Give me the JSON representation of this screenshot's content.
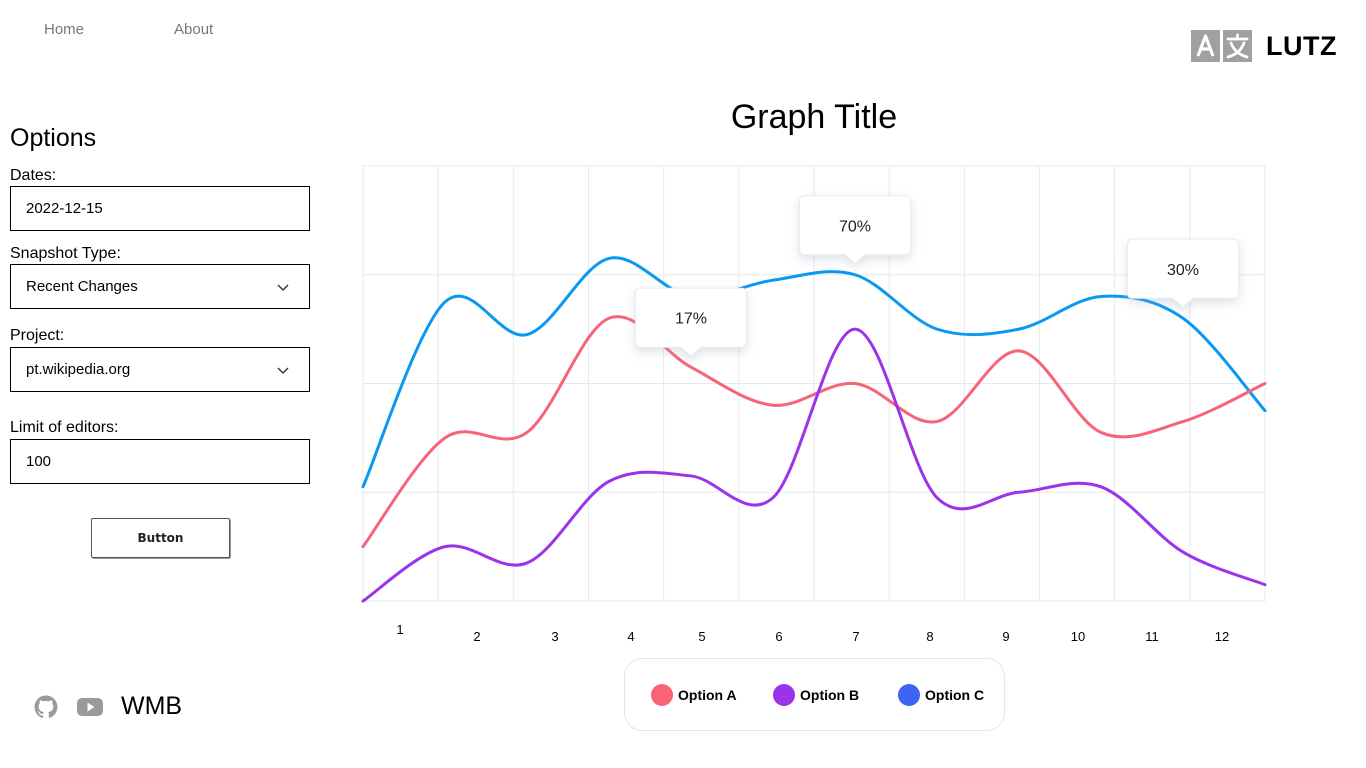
{
  "nav": {
    "home": "Home",
    "about": "About"
  },
  "brand": {
    "name": "LUTZ",
    "icon": "translate-icon"
  },
  "options": {
    "title": "Options",
    "dates_label": "Dates:",
    "dates_value": "2022-12-15",
    "snapshot_label": "Snapshot Type:",
    "snapshot_value": "Recent Changes",
    "project_label": "Project:",
    "project_value": "pt.wikipedia.org",
    "limit_label": "Limit of editors:",
    "limit_value": "100",
    "button_label": "Button"
  },
  "footer": {
    "name": "WMB",
    "icons": [
      "github-icon",
      "youtube-icon"
    ]
  },
  "chart_data": {
    "type": "line",
    "title": "Graph Title",
    "categories": [
      "1",
      "2",
      "3",
      "4",
      "5",
      "6",
      "7",
      "8",
      "9",
      "10",
      "11",
      "12"
    ],
    "grid": true,
    "legend_position": "bottom",
    "series": [
      {
        "name": "Option A",
        "color": "#f76478",
        "values": [
          1.0,
          3.0,
          3.1,
          5.2,
          4.3,
          3.6,
          4.0,
          3.3,
          4.6,
          3.1,
          3.3,
          4.0
        ],
        "callout": {
          "label": "17%",
          "index": 4
        }
      },
      {
        "name": "Option B",
        "color": "#9a33ea",
        "values": [
          0.0,
          1.0,
          0.7,
          2.2,
          2.3,
          1.9,
          5.0,
          1.9,
          2.0,
          2.1,
          0.9,
          0.3
        ],
        "callout": null
      },
      {
        "name": "Option C",
        "color": "#0a98f2",
        "legend_color": "#3e64f2",
        "values": [
          2.1,
          5.5,
          4.9,
          6.3,
          5.6,
          5.9,
          6.0,
          5.0,
          5.0,
          5.6,
          5.2,
          3.5
        ],
        "callout": {
          "label": "70%",
          "index": 6
        },
        "callout2": {
          "label": "30%",
          "index": 10
        }
      }
    ]
  }
}
